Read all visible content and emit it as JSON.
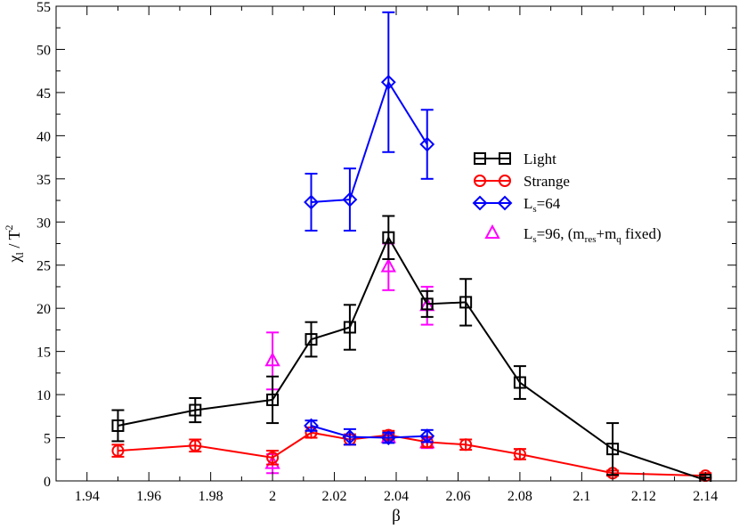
{
  "chart_data": {
    "type": "scatter",
    "title": "",
    "xlabel": "β",
    "ylabel_main": "χ",
    "ylabel_sub": "l",
    "ylabel_rest": " / T",
    "ylabel_sup": "2",
    "xlim": [
      1.93,
      2.15
    ],
    "ylim": [
      0,
      55
    ],
    "xticks": [
      1.94,
      1.96,
      1.98,
      2.0,
      2.02,
      2.04,
      2.06,
      2.08,
      2.1,
      2.12,
      2.14
    ],
    "xtick_labels": [
      "1.94",
      "1.96",
      "1.98",
      "2",
      "2.02",
      "2.04",
      "2.06",
      "2.08",
      "2.1",
      "2.12",
      "2.14"
    ],
    "yticks": [
      0,
      5,
      10,
      15,
      20,
      25,
      30,
      35,
      40,
      45,
      50,
      55
    ],
    "ytick_labels": [
      "0",
      "5",
      "10",
      "15",
      "20",
      "25",
      "30",
      "35",
      "40",
      "45",
      "50",
      "55"
    ],
    "legend_position": "right",
    "series": [
      {
        "key": "light",
        "legend": "Light",
        "color": "#000000",
        "marker": "square",
        "line": true,
        "x": [
          1.95,
          1.975,
          2.0,
          2.0125,
          2.025,
          2.0375,
          2.05,
          2.0625,
          2.08,
          2.11,
          2.14
        ],
        "y": [
          6.4,
          8.2,
          9.4,
          16.4,
          17.8,
          28.2,
          20.5,
          20.7,
          11.4,
          3.7,
          0.1
        ],
        "err": [
          1.8,
          1.4,
          2.7,
          2.0,
          2.6,
          2.5,
          1.5,
          2.7,
          1.9,
          3.0,
          0.3
        ]
      },
      {
        "key": "strange",
        "legend": "Strange",
        "color": "#ff0000",
        "marker": "circle",
        "line": true,
        "x": [
          1.95,
          1.975,
          2.0,
          2.0125,
          2.025,
          2.0375,
          2.05,
          2.0625,
          2.08,
          2.11,
          2.14
        ],
        "y": [
          3.5,
          4.1,
          2.7,
          5.6,
          4.8,
          5.3,
          4.5,
          4.2,
          3.1,
          0.9,
          0.6
        ],
        "err": [
          0.7,
          0.7,
          0.8,
          0.6,
          0.6,
          0.5,
          0.6,
          0.6,
          0.6,
          0.3,
          0.3
        ]
      },
      {
        "key": "ls64",
        "legend_main": "L",
        "legend_sub": "s",
        "legend_rest": "=64",
        "color": "#0000ff",
        "marker": "diamond",
        "line": true,
        "segments": [
          {
            "x": [
              2.0125,
              2.025,
              2.0375,
              2.05
            ],
            "y": [
              32.3,
              32.6,
              46.2,
              39.0
            ],
            "err": [
              3.3,
              3.6,
              8.1,
              4.0
            ]
          },
          {
            "x": [
              2.0125,
              2.025,
              2.0375,
              2.05
            ],
            "y": [
              6.4,
              5.1,
              5.0,
              5.2
            ],
            "err": [
              0.6,
              0.9,
              0.6,
              0.7
            ]
          }
        ]
      },
      {
        "key": "ls96",
        "legend_main": "L",
        "legend_sub": "s",
        "legend_mid": "=96, (m",
        "legend_sub2": "res",
        "legend_mid2": "+m",
        "legend_sub3": "q",
        "legend_rest": " fixed)",
        "color": "#ff00ff",
        "marker": "triangle",
        "line": false,
        "x": [
          2.0,
          2.0375,
          2.05,
          2.0,
          2.0375,
          2.05
        ],
        "y": [
          13.9,
          24.8,
          20.3,
          2.0,
          5.0,
          4.4
        ],
        "err": [
          3.3,
          2.7,
          2.2,
          1.1,
          0.5,
          0.6
        ]
      }
    ]
  }
}
